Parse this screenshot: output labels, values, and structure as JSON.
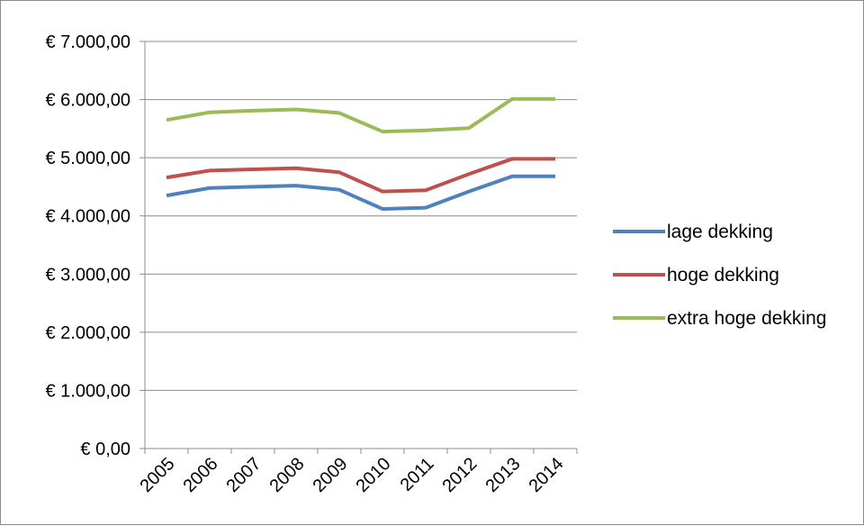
{
  "chart_data": {
    "type": "line",
    "title": "",
    "xlabel": "",
    "ylabel": "",
    "categories": [
      "2005",
      "2006",
      "2007",
      "2008",
      "2009",
      "2010",
      "2011",
      "2012",
      "2013",
      "2014"
    ],
    "ylim": [
      0,
      7000
    ],
    "yticks": [
      0,
      1000,
      2000,
      3000,
      4000,
      5000,
      6000,
      7000
    ],
    "ytick_labels": [
      "€ 0,00",
      "€ 1.000,00",
      "€ 2.000,00",
      "€ 3.000,00",
      "€ 4.000,00",
      "€ 5.000,00",
      "€ 6.000,00",
      "€ 7.000,00"
    ],
    "grid": "horizontal",
    "legend_position": "right",
    "series": [
      {
        "name": "lage dekking",
        "color": "#4f81bd",
        "values": [
          4350,
          4480,
          4500,
          4520,
          4450,
          4120,
          4140,
          4420,
          4680,
          4680
        ]
      },
      {
        "name": "hoge dekking",
        "color": "#c0504d",
        "values": [
          4660,
          4780,
          4800,
          4820,
          4750,
          4420,
          4440,
          4720,
          4980,
          4980
        ]
      },
      {
        "name": "extra hoge dekking",
        "color": "#9bbb59",
        "values": [
          5650,
          5780,
          5810,
          5830,
          5770,
          5450,
          5470,
          5510,
          6010,
          6010
        ]
      }
    ]
  }
}
